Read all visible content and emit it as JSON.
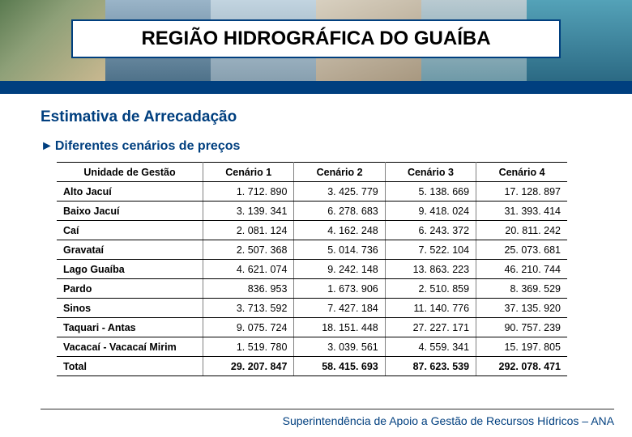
{
  "header": {
    "title": "REGIÃO HIDROGRÁFICA DO GUAÍBA"
  },
  "content": {
    "subtitle": "Estimativa de Arrecadação",
    "scenarios_prefix": "►",
    "scenarios_label": "Diferentes cenários de preços"
  },
  "table": {
    "columns": [
      "Unidade de Gestão",
      "Cenário 1",
      "Cenário 2",
      "Cenário 3",
      "Cenário 4"
    ],
    "rows": [
      {
        "unit": "Alto Jacuí",
        "v": [
          "1. 712. 890",
          "3. 425. 779",
          "5. 138. 669",
          "17. 128. 897"
        ]
      },
      {
        "unit": "Baixo Jacuí",
        "v": [
          "3. 139. 341",
          "6. 278. 683",
          "9. 418. 024",
          "31. 393. 414"
        ]
      },
      {
        "unit": "Caí",
        "v": [
          "2. 081. 124",
          "4. 162. 248",
          "6. 243. 372",
          "20. 811. 242"
        ]
      },
      {
        "unit": "Gravataí",
        "v": [
          "2. 507. 368",
          "5. 014. 736",
          "7. 522. 104",
          "25. 073. 681"
        ]
      },
      {
        "unit": "Lago Guaíba",
        "v": [
          "4. 621. 074",
          "9. 242. 148",
          "13. 863. 223",
          "46. 210. 744"
        ]
      },
      {
        "unit": "Pardo",
        "v": [
          "836. 953",
          "1. 673. 906",
          "2. 510. 859",
          "8. 369. 529"
        ]
      },
      {
        "unit": "Sinos",
        "v": [
          "3. 713. 592",
          "7. 427. 184",
          "11. 140. 776",
          "37. 135. 920"
        ]
      },
      {
        "unit": "Taquari - Antas",
        "v": [
          "9. 075. 724",
          "18. 151. 448",
          "27. 227. 171",
          "90. 757. 239"
        ]
      },
      {
        "unit": "Vacacaí - Vacacaí Mirim",
        "v": [
          "1. 519. 780",
          "3. 039. 561",
          "4. 559. 341",
          "15. 197. 805"
        ]
      }
    ],
    "total": {
      "unit": "Total",
      "v": [
        "29. 207. 847",
        "58. 415. 693",
        "87. 623. 539",
        "292. 078. 471"
      ]
    }
  },
  "footer": {
    "text": "Superintendência de Apoio a Gestão de Recursos Hídricos – ANA"
  },
  "colors": {
    "brand_blue": "#003f7f",
    "background": "#ffffff",
    "rule_gray": "#808080"
  }
}
